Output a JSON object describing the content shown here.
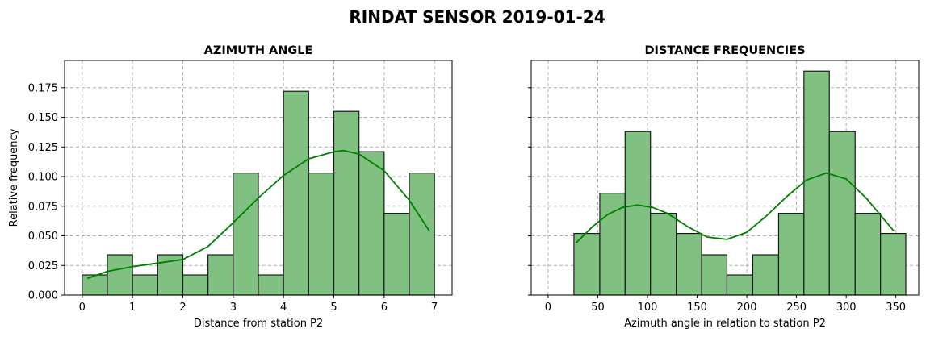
{
  "figure": {
    "title": "RINDAT SENSOR 2019-01-24"
  },
  "colors": {
    "bar_fill": "#80c080",
    "bar_edge": "#1a1a1a",
    "kde": "#008000",
    "grid": "#b0b0b0"
  },
  "chart_data": [
    {
      "type": "bar",
      "title": "AZIMUTH ANGLE",
      "xlabel": "Distance from station P2",
      "ylabel": "Relative frequency",
      "xlim": [
        -0.35,
        7.35
      ],
      "ylim": [
        0,
        0.198
      ],
      "xticks": [
        "0",
        "1",
        "2",
        "3",
        "4",
        "5",
        "6",
        "7"
      ],
      "xtick_values": [
        0,
        1,
        2,
        3,
        4,
        5,
        6,
        7
      ],
      "yticks": [
        "0.000",
        "0.025",
        "0.050",
        "0.075",
        "0.100",
        "0.125",
        "0.150",
        "0.175"
      ],
      "ytick_values": [
        0,
        0.025,
        0.05,
        0.075,
        0.1,
        0.125,
        0.15,
        0.175
      ],
      "grid": true,
      "bin_edges": [
        0,
        0.5,
        1,
        1.5,
        2,
        2.5,
        3,
        3.5,
        4,
        4.5,
        5,
        5.5,
        6,
        6.5,
        7
      ],
      "values": [
        0.017,
        0.034,
        0.017,
        0.034,
        0.017,
        0.034,
        0.103,
        0.017,
        0.172,
        0.103,
        0.155,
        0.121,
        0.069,
        0.103
      ],
      "kde": {
        "x": [
          0.1,
          0.5,
          1.0,
          1.5,
          2.0,
          2.5,
          3.0,
          3.5,
          4.0,
          4.5,
          5.0,
          5.2,
          5.5,
          6.0,
          6.5,
          6.9
        ],
        "y": [
          0.014,
          0.02,
          0.024,
          0.027,
          0.03,
          0.041,
          0.061,
          0.082,
          0.101,
          0.115,
          0.121,
          0.122,
          0.119,
          0.105,
          0.08,
          0.054
        ]
      }
    },
    {
      "type": "bar",
      "title": "DISTANCE FREQUENCIES",
      "xlabel": "Azimuth angle in relation to station P2",
      "ylabel": "",
      "xlim": [
        -17,
        373
      ],
      "ylim": [
        0,
        0.198
      ],
      "xticks": [
        "0",
        "50",
        "100",
        "150",
        "200",
        "250",
        "300",
        "350"
      ],
      "xtick_values": [
        0,
        50,
        100,
        150,
        200,
        250,
        300,
        350
      ],
      "yticks": [],
      "ytick_values": [
        0,
        0.025,
        0.05,
        0.075,
        0.1,
        0.125,
        0.15,
        0.175
      ],
      "grid": true,
      "bin_edges": [
        26,
        52,
        77.5,
        103,
        129,
        154.5,
        180,
        206,
        232,
        257.5,
        283,
        309,
        334.5,
        360
      ],
      "values": [
        0.052,
        0.086,
        0.138,
        0.069,
        0.052,
        0.034,
        0.017,
        0.034,
        0.069,
        0.189,
        0.138,
        0.069,
        0.052
      ],
      "kde": {
        "x": [
          28,
          45,
          60,
          75,
          90,
          105,
          120,
          140,
          160,
          180,
          200,
          220,
          240,
          260,
          280,
          300,
          320,
          340,
          348
        ],
        "y": [
          0.044,
          0.058,
          0.068,
          0.074,
          0.076,
          0.074,
          0.069,
          0.058,
          0.049,
          0.047,
          0.053,
          0.067,
          0.083,
          0.097,
          0.103,
          0.098,
          0.082,
          0.062,
          0.054
        ]
      }
    }
  ]
}
